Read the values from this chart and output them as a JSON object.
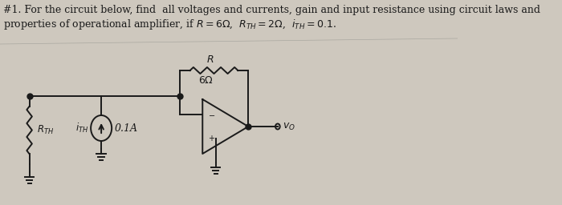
{
  "title_line1": "#1. For the circuit below, find  all voltages and currents, gain and input resistance using circuit laws and",
  "title_line2": "properties of operational amplifier, if $R = 6\\Omega$,  $R_{TH} = 2\\Omega$,  $i_{TH} = 0.1$.",
  "bg_color": "#cec8be",
  "line_color": "#1a1a1a",
  "text_color": "#1a1a1a",
  "font_size_title": 9.0,
  "resistor_label_R": "$R$",
  "resistor_label_val": "$6\\Omega$",
  "vo_label": "$v_O$",
  "rth_label": "$R_{TH}$",
  "ith_label": "$i_{TH}$",
  "current_label": "0.1A",
  "minus_label": "$-$",
  "plus_label": "$+$"
}
